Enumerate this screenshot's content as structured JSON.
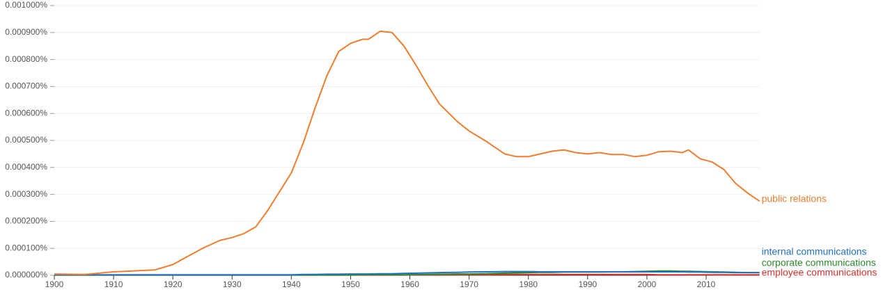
{
  "chart_data": {
    "type": "line",
    "x": [
      1900,
      1905,
      1910,
      1915,
      1917,
      1920,
      1925,
      1928,
      1930,
      1932,
      1934,
      1936,
      1938,
      1940,
      1942,
      1944,
      1946,
      1948,
      1950,
      1952,
      1953,
      1955,
      1957,
      1959,
      1961,
      1963,
      1965,
      1968,
      1970,
      1973,
      1976,
      1978,
      1980,
      1982,
      1984,
      1986,
      1988,
      1990,
      1992,
      1994,
      1996,
      1998,
      2000,
      2002,
      2004,
      2006,
      2007,
      2009,
      2011,
      2013,
      2015,
      2017,
      2019
    ],
    "series": [
      {
        "name": "public relations",
        "color": "#ef7d2d",
        "values": [
          5e-06,
          3e-06,
          1.3e-05,
          1.8e-05,
          2e-05,
          4e-05,
          0.0001,
          0.00013,
          0.00014,
          0.000155,
          0.00018,
          0.00024,
          0.00031,
          0.00038,
          0.00049,
          0.00062,
          0.00074,
          0.00083,
          0.00086,
          0.000875,
          0.000875,
          0.000905,
          0.0009,
          0.00085,
          0.00078,
          0.000705,
          0.000635,
          0.00057,
          0.000535,
          0.000495,
          0.00045,
          0.00044,
          0.00044,
          0.00045,
          0.00046,
          0.000465,
          0.000455,
          0.00045,
          0.000455,
          0.000448,
          0.000448,
          0.00044,
          0.000445,
          0.000458,
          0.00046,
          0.000455,
          0.000465,
          0.000432,
          0.00042,
          0.000392,
          0.00034,
          0.000305,
          0.000275
        ]
      },
      {
        "name": "internal communications",
        "color": "#1f6fc5",
        "values": [
          2e-06,
          2e-06,
          2e-06,
          2e-06,
          2e-06,
          2e-06,
          2e-06,
          2e-06,
          2e-06,
          2e-06,
          2e-06,
          2e-06,
          2e-06,
          2e-06,
          3e-06,
          3e-06,
          4e-06,
          4e-06,
          5e-06,
          5e-06,
          5e-06,
          6e-06,
          6e-06,
          7e-06,
          8e-06,
          9e-06,
          1e-05,
          1.1e-05,
          1.2e-05,
          1.3e-05,
          1.4e-05,
          1.4e-05,
          1.4e-05,
          1.3e-05,
          1.3e-05,
          1.3e-05,
          1.3e-05,
          1.3e-05,
          1.3e-05,
          1.3e-05,
          1.3e-05,
          1.3e-05,
          1.3e-05,
          1.3e-05,
          1.3e-05,
          1.3e-05,
          1.2e-05,
          1.2e-05,
          1.1e-05,
          1.1e-05,
          1e-05,
          1e-05,
          1e-05
        ]
      },
      {
        "name": "corporate communications",
        "color": "#2a8a2a",
        "values": [
          1e-06,
          1e-06,
          1e-06,
          1e-06,
          1e-06,
          1e-06,
          1e-06,
          1e-06,
          1e-06,
          1e-06,
          1e-06,
          1e-06,
          1e-06,
          1e-06,
          1e-06,
          1e-06,
          1e-06,
          1e-06,
          1e-06,
          2e-06,
          2e-06,
          2e-06,
          2e-06,
          2e-06,
          3e-06,
          3e-06,
          4e-06,
          5e-06,
          5e-06,
          6e-06,
          8e-06,
          9e-06,
          1e-05,
          1.1e-05,
          1.1e-05,
          1.2e-05,
          1.2e-05,
          1.2e-05,
          1.2e-05,
          1.3e-05,
          1.3e-05,
          1.4e-05,
          1.5e-05,
          1.6e-05,
          1.6e-05,
          1.5e-05,
          1.5e-05,
          1.4e-05,
          1.3e-05,
          1.2e-05,
          1.1e-05,
          1e-05,
          1e-05
        ]
      },
      {
        "name": "employee communications",
        "color": "#d8322c",
        "values": [
          1e-06,
          1e-06,
          1e-06,
          1e-06,
          1e-06,
          1e-06,
          1e-06,
          1e-06,
          1e-06,
          1e-06,
          1e-06,
          1e-06,
          1e-06,
          1e-06,
          1e-06,
          1e-06,
          1e-06,
          1e-06,
          1e-06,
          1e-06,
          1e-06,
          1e-06,
          1e-06,
          1e-06,
          2e-06,
          2e-06,
          2e-06,
          2e-06,
          2e-06,
          2e-06,
          3e-06,
          3e-06,
          3e-06,
          3e-06,
          3e-06,
          3e-06,
          3e-06,
          3e-06,
          3e-06,
          3e-06,
          3e-06,
          3e-06,
          3e-06,
          2e-06,
          2e-06,
          2e-06,
          2e-06,
          2e-06,
          2e-06,
          2e-06,
          2e-06,
          2e-06,
          2e-06
        ]
      }
    ],
    "xlim": [
      1900,
      2019
    ],
    "xticks": [
      1900,
      1910,
      1920,
      1930,
      1940,
      1950,
      1960,
      1970,
      1980,
      1990,
      2000,
      2010
    ],
    "ylim": [
      0,
      0.001
    ],
    "yticks": [
      {
        "value": 0,
        "label": "0.000000%"
      },
      {
        "value": 0.0001,
        "label": "0.000100%"
      },
      {
        "value": 0.0002,
        "label": "0.000200%"
      },
      {
        "value": 0.0003,
        "label": "0.000300%"
      },
      {
        "value": 0.0004,
        "label": "0.000400%"
      },
      {
        "value": 0.0005,
        "label": "0.000500%"
      },
      {
        "value": 0.0006,
        "label": "0.000600%"
      },
      {
        "value": 0.0007,
        "label": "0.000700%"
      },
      {
        "value": 0.0008,
        "label": "0.000800%"
      },
      {
        "value": 0.0009,
        "label": "0.000900%"
      },
      {
        "value": 0.001,
        "label": "0.001000%"
      }
    ],
    "grid": true
  }
}
